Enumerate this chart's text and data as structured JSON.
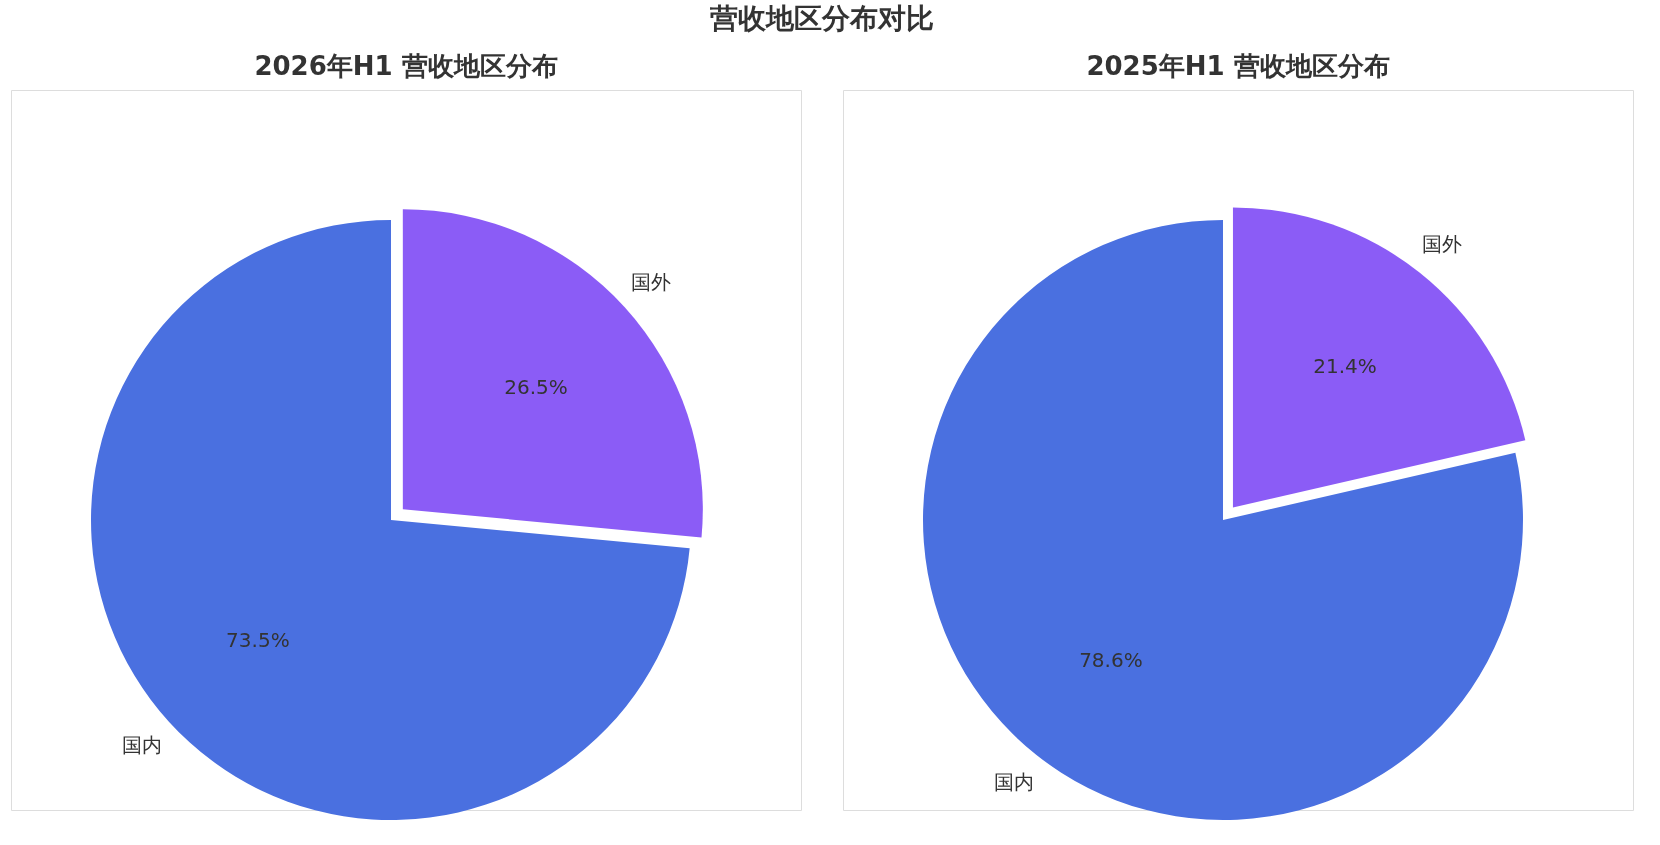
{
  "chart_data": [
    {
      "type": "pie",
      "title": "2026年H1 营收地区分布",
      "annotations": [
        "营收地区分布对比"
      ],
      "categories": [
        "国外",
        "国内"
      ],
      "values": [
        26.5,
        73.5
      ],
      "colors": [
        "#8b5cf6",
        "#4a70e0"
      ],
      "value_labels": [
        "26.5%",
        "73.5%"
      ]
    },
    {
      "type": "pie",
      "title": "2025年H1 营收地区分布",
      "categories": [
        "国外",
        "国内"
      ],
      "values": [
        21.4,
        78.6
      ],
      "colors": [
        "#8b5cf6",
        "#4a70e0"
      ],
      "value_labels": [
        "21.4%",
        "78.6%"
      ]
    }
  ]
}
